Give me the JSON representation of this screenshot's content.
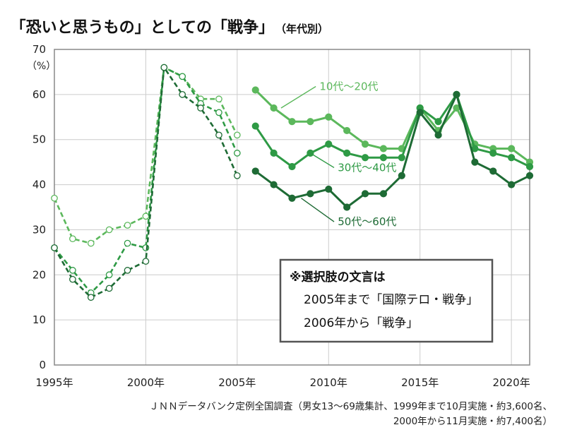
{
  "chart_data": {
    "type": "line",
    "title": "「恐いと思うもの」としての「戦争」",
    "subtitle": "（年代別）",
    "ylabel": "（%）",
    "ylim": [
      0,
      70
    ],
    "yticks": [
      0,
      10,
      20,
      30,
      40,
      50,
      60,
      70
    ],
    "xlim": [
      1995,
      2021
    ],
    "xticks": [
      {
        "value": 1995,
        "label": "1995年"
      },
      {
        "value": 2000,
        "label": "2000年"
      },
      {
        "value": 2005,
        "label": "2005年"
      },
      {
        "value": 2010,
        "label": "2010年"
      },
      {
        "value": 2015,
        "label": "2015年"
      },
      {
        "value": 2020,
        "label": "2020年"
      }
    ],
    "grid": true,
    "colors": {
      "s1": "#5cb85c",
      "s2": "#2e9a45",
      "s3": "#1e6b35",
      "axis": "#888888",
      "grid": "#cccccc"
    },
    "series": [
      {
        "name": "10代～20代",
        "label_x": 2009.5,
        "label_y": 61,
        "early": [
          [
            1995,
            37
          ],
          [
            1996,
            28
          ],
          [
            1997,
            27
          ],
          [
            1998,
            30
          ],
          [
            1999,
            31
          ],
          [
            2000,
            33
          ],
          [
            2001,
            66
          ],
          [
            2002,
            64
          ],
          [
            2003,
            59
          ],
          [
            2004,
            59
          ],
          [
            2005,
            51
          ]
        ],
        "late": [
          [
            2006,
            61
          ],
          [
            2007,
            57
          ],
          [
            2008,
            54
          ],
          [
            2009,
            54
          ],
          [
            2010,
            55
          ],
          [
            2011,
            52
          ],
          [
            2012,
            49
          ],
          [
            2013,
            48
          ],
          [
            2014,
            48
          ],
          [
            2015,
            57
          ],
          [
            2016,
            52
          ],
          [
            2017,
            57
          ],
          [
            2018,
            49
          ],
          [
            2019,
            48
          ],
          [
            2020,
            48
          ],
          [
            2021,
            45
          ]
        ]
      },
      {
        "name": "30代～40代",
        "label_x": 2010.5,
        "label_y": 43,
        "early": [
          [
            1995,
            26
          ],
          [
            1996,
            21
          ],
          [
            1997,
            16
          ],
          [
            1998,
            20
          ],
          [
            1999,
            27
          ],
          [
            2000,
            26
          ],
          [
            2001,
            66
          ],
          [
            2002,
            64
          ],
          [
            2003,
            58
          ],
          [
            2004,
            56
          ],
          [
            2005,
            47
          ]
        ],
        "late": [
          [
            2006,
            53
          ],
          [
            2007,
            47
          ],
          [
            2008,
            44
          ],
          [
            2009,
            47
          ],
          [
            2010,
            49
          ],
          [
            2011,
            47
          ],
          [
            2012,
            46
          ],
          [
            2013,
            46
          ],
          [
            2014,
            46
          ],
          [
            2015,
            57
          ],
          [
            2016,
            54
          ],
          [
            2017,
            60
          ],
          [
            2018,
            48
          ],
          [
            2019,
            47
          ],
          [
            2020,
            46
          ],
          [
            2021,
            44
          ]
        ]
      },
      {
        "name": "50代～60代",
        "label_x": 2010.5,
        "label_y": 31,
        "early": [
          [
            1995,
            26
          ],
          [
            1996,
            19
          ],
          [
            1997,
            15
          ],
          [
            1998,
            17
          ],
          [
            1999,
            21
          ],
          [
            2000,
            23
          ],
          [
            2001,
            66
          ],
          [
            2002,
            60
          ],
          [
            2003,
            57
          ],
          [
            2004,
            51
          ],
          [
            2005,
            42
          ]
        ],
        "late": [
          [
            2006,
            43
          ],
          [
            2007,
            40
          ],
          [
            2008,
            37
          ],
          [
            2009,
            38
          ],
          [
            2010,
            39
          ],
          [
            2011,
            35
          ],
          [
            2012,
            38
          ],
          [
            2013,
            38
          ],
          [
            2014,
            42
          ],
          [
            2015,
            56
          ],
          [
            2016,
            51
          ],
          [
            2017,
            60
          ],
          [
            2018,
            45
          ],
          [
            2019,
            43
          ],
          [
            2020,
            40
          ],
          [
            2021,
            42
          ]
        ]
      }
    ],
    "note": {
      "title": "※選択肢の文言は",
      "lines": [
        "2005年まで「国際テロ・戦争」",
        "2006年から「戦争」"
      ]
    },
    "source_lines": [
      "ＪＮＮデータバンク定例全国調査（男女13～69歳集計、1999年まで10月実施・約3,600名、",
      "2000年から11月実施・約7,400名）"
    ]
  }
}
